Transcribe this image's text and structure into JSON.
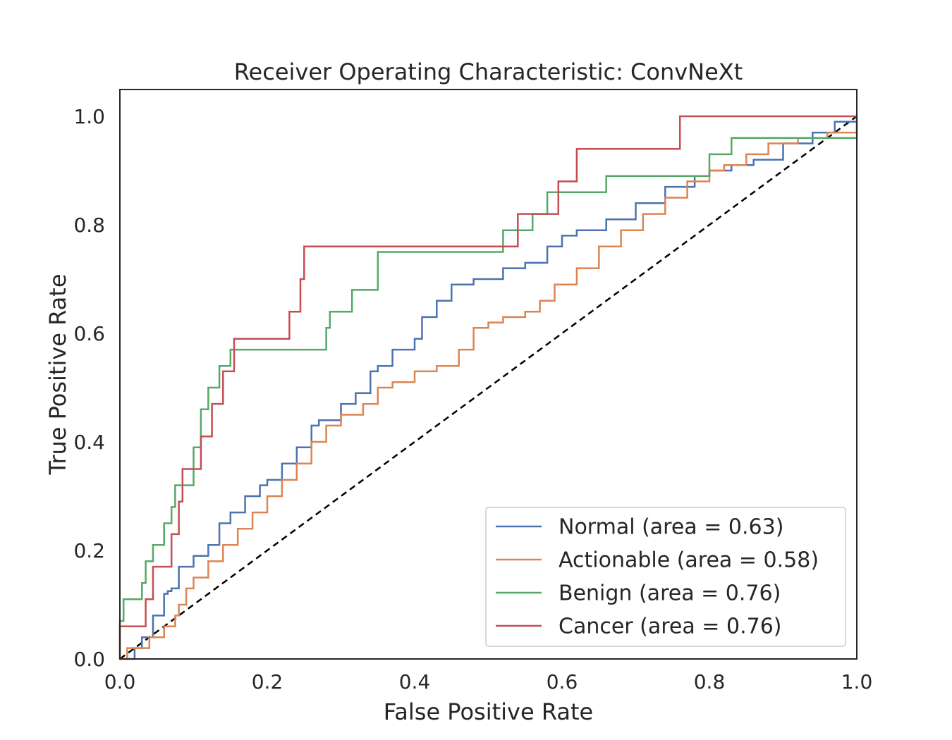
{
  "chart_data": {
    "type": "line",
    "title": "Receiver Operating Characteristic: ConvNeXt",
    "xlabel": "False Positive Rate",
    "ylabel": "True Positive Rate",
    "xlim": [
      0.0,
      1.0
    ],
    "ylim": [
      0.0,
      1.05
    ],
    "x_ticks": [
      "0.0",
      "0.2",
      "0.4",
      "0.6",
      "0.8",
      "1.0"
    ],
    "y_ticks": [
      "0.0",
      "0.2",
      "0.4",
      "0.6",
      "0.8",
      "1.0"
    ],
    "grid": false,
    "legend_position": "lower right",
    "diagonal": {
      "style": "dashed",
      "color": "#000000",
      "x": [
        0,
        1
      ],
      "y": [
        0,
        1
      ]
    },
    "series": [
      {
        "name": "Normal (area = 0.63)",
        "color": "#4c72b0",
        "x": [
          0.0,
          0.02,
          0.03,
          0.045,
          0.06,
          0.065,
          0.07,
          0.08,
          0.1,
          0.12,
          0.135,
          0.15,
          0.17,
          0.19,
          0.2,
          0.22,
          0.24,
          0.26,
          0.27,
          0.3,
          0.32,
          0.34,
          0.35,
          0.37,
          0.4,
          0.41,
          0.43,
          0.45,
          0.48,
          0.52,
          0.55,
          0.58,
          0.6,
          0.62,
          0.66,
          0.7,
          0.74,
          0.78,
          0.8,
          0.83,
          0.86,
          0.9,
          0.94,
          0.97,
          1.0
        ],
        "y": [
          0.0,
          0.02,
          0.04,
          0.08,
          0.12,
          0.125,
          0.13,
          0.17,
          0.19,
          0.21,
          0.25,
          0.27,
          0.3,
          0.32,
          0.33,
          0.36,
          0.39,
          0.43,
          0.44,
          0.47,
          0.49,
          0.53,
          0.54,
          0.57,
          0.59,
          0.63,
          0.66,
          0.69,
          0.7,
          0.72,
          0.73,
          0.76,
          0.78,
          0.79,
          0.81,
          0.84,
          0.87,
          0.89,
          0.9,
          0.91,
          0.92,
          0.95,
          0.97,
          0.99,
          1.0
        ],
        "step": true
      },
      {
        "name": "Actionable (area = 0.58)",
        "color": "#dd8452",
        "x": [
          0.0,
          0.01,
          0.04,
          0.06,
          0.075,
          0.08,
          0.09,
          0.1,
          0.12,
          0.14,
          0.16,
          0.18,
          0.2,
          0.22,
          0.24,
          0.26,
          0.28,
          0.3,
          0.33,
          0.35,
          0.37,
          0.4,
          0.43,
          0.46,
          0.48,
          0.5,
          0.52,
          0.55,
          0.57,
          0.59,
          0.62,
          0.65,
          0.68,
          0.71,
          0.74,
          0.77,
          0.8,
          0.82,
          0.85,
          0.88,
          0.92,
          0.96,
          1.0
        ],
        "y": [
          0.0,
          0.02,
          0.04,
          0.06,
          0.08,
          0.1,
          0.13,
          0.15,
          0.18,
          0.21,
          0.24,
          0.27,
          0.3,
          0.33,
          0.36,
          0.4,
          0.43,
          0.45,
          0.47,
          0.5,
          0.51,
          0.53,
          0.54,
          0.57,
          0.61,
          0.62,
          0.63,
          0.64,
          0.66,
          0.69,
          0.72,
          0.76,
          0.79,
          0.82,
          0.85,
          0.88,
          0.9,
          0.91,
          0.93,
          0.95,
          0.96,
          0.97,
          0.99
        ],
        "step": true
      },
      {
        "name": "Benign (area = 0.76)",
        "color": "#55a868",
        "x": [
          0.0,
          0.0,
          0.005,
          0.03,
          0.035,
          0.045,
          0.06,
          0.07,
          0.075,
          0.1,
          0.11,
          0.12,
          0.135,
          0.15,
          0.28,
          0.285,
          0.315,
          0.35,
          0.35,
          0.52,
          0.56,
          0.58,
          0.66,
          0.8,
          0.83,
          1.0
        ],
        "y": [
          0.0,
          0.07,
          0.11,
          0.14,
          0.18,
          0.21,
          0.25,
          0.28,
          0.32,
          0.39,
          0.46,
          0.5,
          0.54,
          0.57,
          0.61,
          0.64,
          0.68,
          0.71,
          0.75,
          0.79,
          0.82,
          0.86,
          0.89,
          0.93,
          0.96,
          1.0
        ],
        "step": true
      },
      {
        "name": "Cancer (area = 0.76)",
        "color": "#c44e52",
        "x": [
          0.0,
          0.0,
          0.035,
          0.045,
          0.07,
          0.08,
          0.085,
          0.11,
          0.125,
          0.14,
          0.155,
          0.23,
          0.245,
          0.25,
          0.54,
          0.595,
          0.62,
          0.76,
          1.0
        ],
        "y": [
          0.0,
          0.06,
          0.11,
          0.17,
          0.23,
          0.29,
          0.35,
          0.41,
          0.47,
          0.53,
          0.59,
          0.64,
          0.7,
          0.76,
          0.82,
          0.88,
          0.94,
          1.0,
          1.0
        ],
        "step": true
      }
    ]
  }
}
